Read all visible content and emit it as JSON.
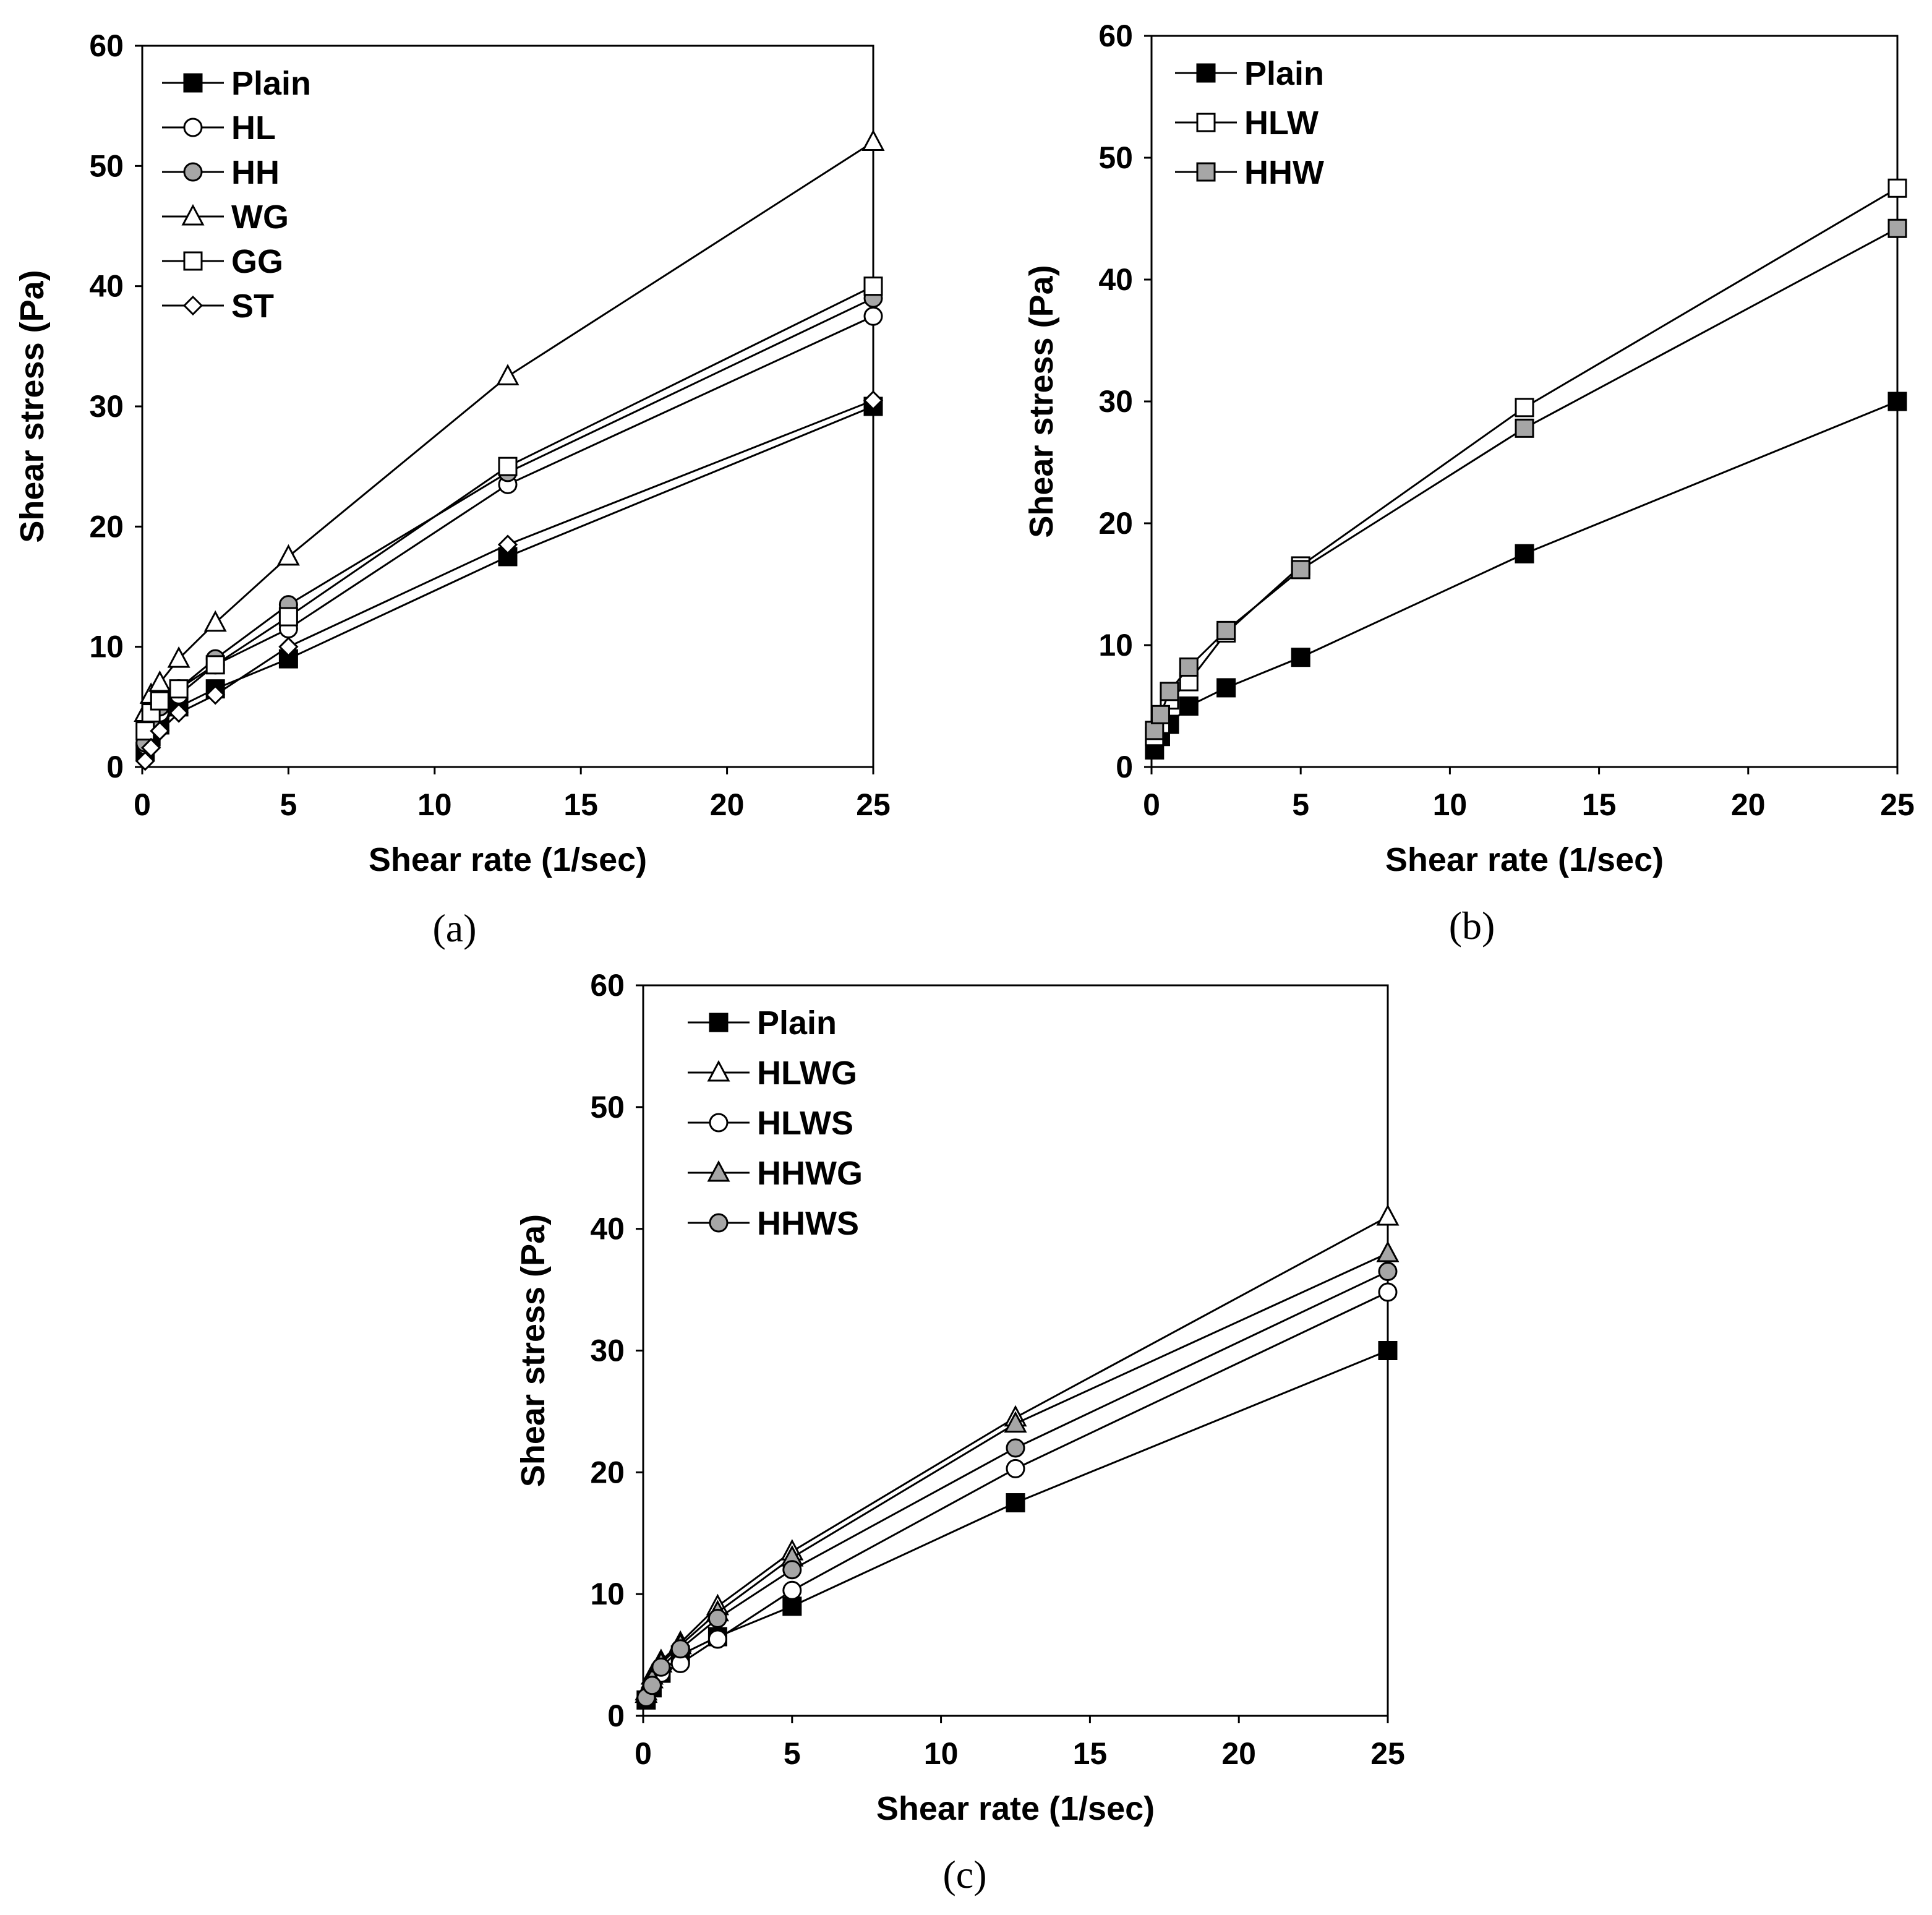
{
  "chart_data": [
    {
      "type": "line",
      "panel": "a",
      "caption": "(a)",
      "xlabel": "Shear rate (1/sec)",
      "ylabel": "Shear stress (Pa)",
      "xlim": [
        0,
        25
      ],
      "ylim": [
        0,
        60
      ],
      "xticks": [
        "0",
        "5",
        "10",
        "15",
        "20",
        "25"
      ],
      "yticks": [
        "0",
        "10",
        "20",
        "30",
        "40",
        "50",
        "60"
      ],
      "grid": false,
      "legend_position": "top-left",
      "x": [
        0.1,
        0.3,
        0.6,
        1.25,
        2.5,
        5,
        12.5,
        25
      ],
      "series": [
        {
          "name": "Plain",
          "marker": "square",
          "fill": "#000000",
          "values": [
            1.3,
            2.5,
            3.5,
            5,
            6.5,
            9,
            17.5,
            30
          ]
        },
        {
          "name": "HL",
          "marker": "circle",
          "fill": "#ffffff",
          "values": [
            1.8,
            3.4,
            4.5,
            6,
            8.5,
            11.5,
            23.5,
            37.5
          ]
        },
        {
          "name": "HH",
          "marker": "circle",
          "fill": "#a6a6a6",
          "values": [
            2,
            3.8,
            5,
            6.5,
            9,
            13.5,
            24.5,
            39
          ]
        },
        {
          "name": "WG",
          "marker": "triangle",
          "fill": "#ffffff",
          "values": [
            4.5,
            6,
            7,
            9,
            12,
            17.5,
            32.5,
            52
          ]
        },
        {
          "name": "GG",
          "marker": "square",
          "fill": "#ffffff",
          "values": [
            3,
            4.5,
            5.5,
            6.5,
            8.5,
            12.5,
            25,
            40
          ]
        },
        {
          "name": "ST",
          "marker": "diamond",
          "fill": "#ffffff",
          "values": [
            0.5,
            1.6,
            3,
            4.5,
            6,
            10,
            18.5,
            30.5
          ]
        }
      ]
    },
    {
      "type": "line",
      "panel": "b",
      "caption": "(b)",
      "xlabel": "Shear rate (1/sec)",
      "ylabel": "Shear stress (Pa)",
      "xlim": [
        0,
        25
      ],
      "ylim": [
        0,
        60
      ],
      "xticks": [
        "0",
        "5",
        "10",
        "15",
        "20",
        "25"
      ],
      "yticks": [
        "0",
        "10",
        "20",
        "30",
        "40",
        "50",
        "60"
      ],
      "grid": false,
      "legend_position": "top-left",
      "x": [
        0.1,
        0.3,
        0.6,
        1.25,
        2.5,
        5,
        12.5,
        25
      ],
      "series": [
        {
          "name": "Plain",
          "marker": "square",
          "fill": "#000000",
          "values": [
            1.4,
            2.5,
            3.5,
            5,
            6.5,
            9,
            17.5,
            30
          ]
        },
        {
          "name": "HLW",
          "marker": "square",
          "fill": "#ffffff",
          "values": [
            2.5,
            3.5,
            5.5,
            7,
            11,
            16.5,
            29.5,
            47.5
          ]
        },
        {
          "name": "HHW",
          "marker": "square",
          "fill": "#a6a6a6",
          "values": [
            3,
            4.3,
            6.2,
            8.2,
            11.2,
            16.2,
            27.8,
            44.2
          ]
        }
      ]
    },
    {
      "type": "line",
      "panel": "c",
      "caption": "(c)",
      "xlabel": "Shear rate (1/sec)",
      "ylabel": "Shear stress (Pa)",
      "xlim": [
        0,
        25
      ],
      "ylim": [
        0,
        60
      ],
      "xticks": [
        "0",
        "5",
        "10",
        "15",
        "20",
        "25"
      ],
      "yticks": [
        "0",
        "10",
        "20",
        "30",
        "40",
        "50",
        "60"
      ],
      "grid": false,
      "legend_position": "top-left",
      "x": [
        0.1,
        0.3,
        0.6,
        1.25,
        2.5,
        5,
        12.5,
        25
      ],
      "series": [
        {
          "name": "Plain",
          "marker": "square",
          "fill": "#000000",
          "values": [
            1.3,
            2.3,
            3.5,
            5,
            6.5,
            9,
            17.5,
            30
          ]
        },
        {
          "name": "HLWG",
          "marker": "triangle",
          "fill": "#ffffff",
          "values": [
            2,
            3.3,
            4.5,
            6,
            9,
            13.5,
            24.5,
            41
          ]
        },
        {
          "name": "HLWS",
          "marker": "circle",
          "fill": "#ffffff",
          "values": [
            1.5,
            2.5,
            3.5,
            4.3,
            6.3,
            10.3,
            20.3,
            34.8
          ]
        },
        {
          "name": "HHWG",
          "marker": "triangle",
          "fill": "#a6a6a6",
          "values": [
            1.8,
            3,
            4.3,
            5.8,
            8.5,
            13,
            24,
            38
          ]
        },
        {
          "name": "HHWS",
          "marker": "circle",
          "fill": "#a6a6a6",
          "values": [
            1.5,
            2.5,
            4,
            5.5,
            8,
            12,
            22,
            36.5
          ]
        }
      ]
    }
  ]
}
